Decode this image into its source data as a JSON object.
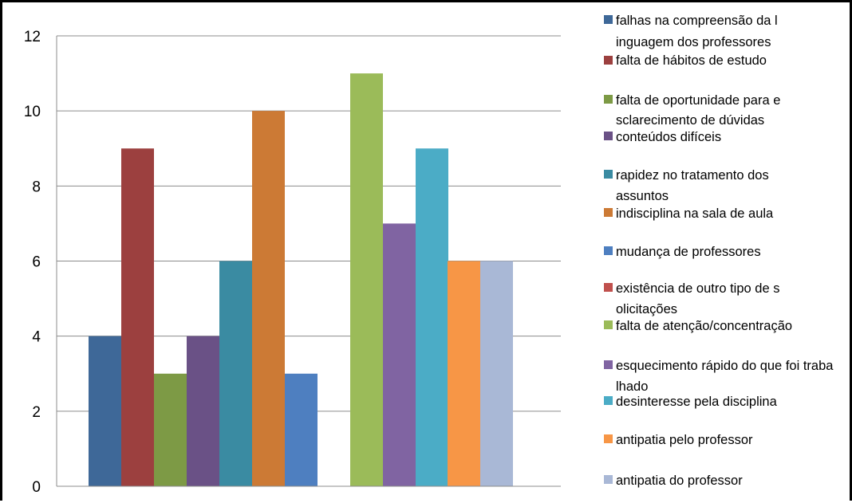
{
  "chart_data": {
    "type": "bar",
    "title": "",
    "xlabel": "",
    "ylabel": "",
    "ylim": [
      0,
      12
    ],
    "yticks": [
      0,
      2,
      4,
      6,
      8,
      10,
      12
    ],
    "grid": true,
    "legend_position": "right",
    "series": [
      {
        "name": "falhas na compreensão da linguagem dos professores",
        "value": 4,
        "color": "#3E6898"
      },
      {
        "name": "falta de hábitos de estudo",
        "value": 9,
        "color": "#9C403F"
      },
      {
        "name": "falta de oportunidade para esclarecimento de dúvidas",
        "value": 3,
        "color": "#7D9A45"
      },
      {
        "name": "conteúdos difíceis",
        "value": 4,
        "color": "#6A5186"
      },
      {
        "name": "rapidez no tratamento dos assuntos",
        "value": 6,
        "color": "#3A8BA2"
      },
      {
        "name": "indisciplina na sala de aula",
        "value": 10,
        "color": "#CC7A35"
      },
      {
        "name": "mudança de professores",
        "value": 3,
        "color": "#4E7FC0"
      },
      {
        "name": "existência de outro tipo de solicitações",
        "value": 0,
        "color": "#C0504D"
      },
      {
        "name": "falta de atenção/concentração",
        "value": 11,
        "color": "#9BBB59"
      },
      {
        "name": "esquecimento rápido do que foi trabalhado",
        "value": 7,
        "color": "#8064A2"
      },
      {
        "name": "desinteresse pela disciplina",
        "value": 9,
        "color": "#4BACC6"
      },
      {
        "name": "antipatia pelo professor",
        "value": 6,
        "color": "#F79646"
      },
      {
        "name": "antipatia do professor",
        "value": 6,
        "color": "#A9B8D6"
      }
    ]
  }
}
